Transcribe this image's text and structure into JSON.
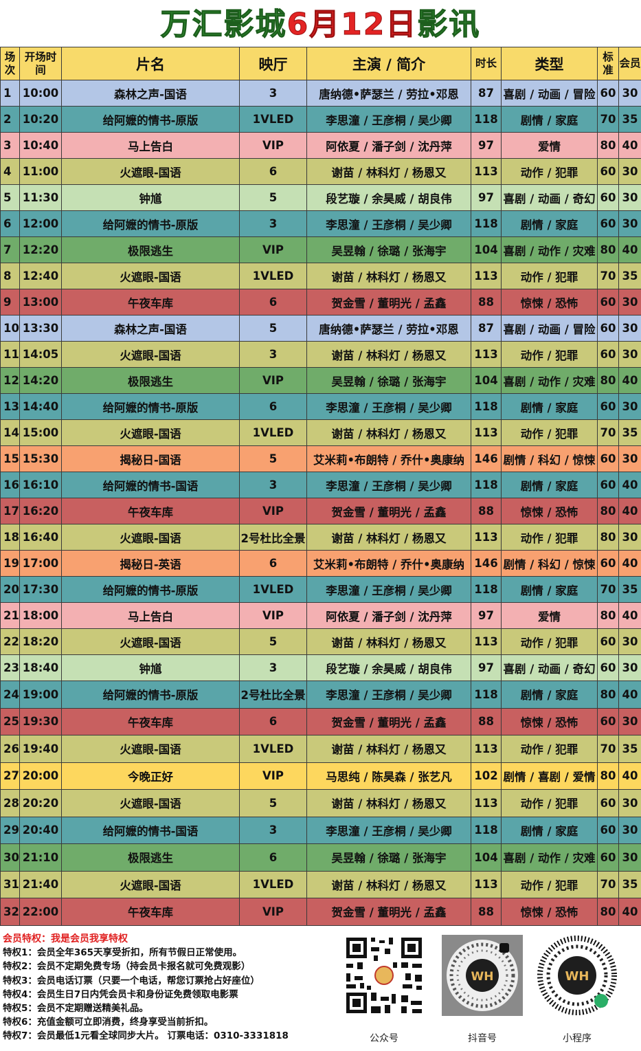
{
  "title": {
    "part1": "万汇影城",
    "part2": "6月12日",
    "part3": "影讯"
  },
  "headers": {
    "no": "场次",
    "time": "开场时间",
    "film": "片名",
    "hall": "映厅",
    "cast": "主演 / 简介",
    "duration": "时长",
    "genre": "类型",
    "std": "标准",
    "member": "会员"
  },
  "rows": [
    {
      "no": "1",
      "time": "10:00",
      "film": "森林之声-国语",
      "hall": "3",
      "cast": "唐纳德•萨瑟兰 / 劳拉•邓恩",
      "dur": "87",
      "genre": "喜剧 / 动画 / 冒险",
      "std": "60",
      "mem": "30",
      "color": "blue"
    },
    {
      "no": "2",
      "time": "10:20",
      "film": "给阿嬷的情书-原版",
      "hall": "1VLED",
      "cast": "李思潼 / 王彦桐 / 吴少卿",
      "dur": "118",
      "genre": "剧情 / 家庭",
      "std": "70",
      "mem": "35",
      "color": "teal"
    },
    {
      "no": "3",
      "time": "10:40",
      "film": "马上告白",
      "hall": "VIP",
      "cast": "阿依夏 / 潘子剑 / 沈丹萍",
      "dur": "97",
      "genre": "爱情",
      "std": "80",
      "mem": "40",
      "color": "pink"
    },
    {
      "no": "4",
      "time": "11:00",
      "film": "火遮眼-国语",
      "hall": "6",
      "cast": "谢苗 / 林科灯 / 杨恩又",
      "dur": "113",
      "genre": "动作 / 犯罪",
      "std": "60",
      "mem": "30",
      "color": "olive"
    },
    {
      "no": "5",
      "time": "11:30",
      "film": "钟馗",
      "hall": "5",
      "cast": "段艺璇 / 余昊威 / 胡良伟",
      "dur": "97",
      "genre": "喜剧 / 动画 / 奇幻",
      "std": "60",
      "mem": "30",
      "color": "light"
    },
    {
      "no": "6",
      "time": "12:00",
      "film": "给阿嬷的情书-原版",
      "hall": "3",
      "cast": "李思潼 / 王彦桐 / 吴少卿",
      "dur": "118",
      "genre": "剧情 / 家庭",
      "std": "60",
      "mem": "30",
      "color": "teal"
    },
    {
      "no": "7",
      "time": "12:20",
      "film": "极限逃生",
      "hall": "VIP",
      "cast": "吴昱翰 / 徐璐 / 张海宇",
      "dur": "104",
      "genre": "喜剧 / 动作 / 灾难",
      "std": "80",
      "mem": "40",
      "color": "green"
    },
    {
      "no": "8",
      "time": "12:40",
      "film": "火遮眼-国语",
      "hall": "1VLED",
      "cast": "谢苗 / 林科灯 / 杨恩又",
      "dur": "113",
      "genre": "动作 / 犯罪",
      "std": "70",
      "mem": "35",
      "color": "olive"
    },
    {
      "no": "9",
      "time": "13:00",
      "film": "午夜车库",
      "hall": "6",
      "cast": "贺金雪 / 董明光 / 孟鑫",
      "dur": "88",
      "genre": "惊悚 / 恐怖",
      "std": "60",
      "mem": "30",
      "color": "red"
    },
    {
      "no": "10",
      "time": "13:30",
      "film": "森林之声-国语",
      "hall": "5",
      "cast": "唐纳德•萨瑟兰 / 劳拉•邓恩",
      "dur": "87",
      "genre": "喜剧 / 动画 / 冒险",
      "std": "60",
      "mem": "30",
      "color": "blue"
    },
    {
      "no": "11",
      "time": "14:05",
      "film": "火遮眼-国语",
      "hall": "3",
      "cast": "谢苗 / 林科灯 / 杨恩又",
      "dur": "113",
      "genre": "动作 / 犯罪",
      "std": "60",
      "mem": "30",
      "color": "olive"
    },
    {
      "no": "12",
      "time": "14:20",
      "film": "极限逃生",
      "hall": "VIP",
      "cast": "吴昱翰 / 徐璐 / 张海宇",
      "dur": "104",
      "genre": "喜剧 / 动作 / 灾难",
      "std": "80",
      "mem": "40",
      "color": "green"
    },
    {
      "no": "13",
      "time": "14:40",
      "film": "给阿嬷的情书-原版",
      "hall": "6",
      "cast": "李思潼 / 王彦桐 / 吴少卿",
      "dur": "118",
      "genre": "剧情 / 家庭",
      "std": "60",
      "mem": "30",
      "color": "teal"
    },
    {
      "no": "14",
      "time": "15:00",
      "film": "火遮眼-国语",
      "hall": "1VLED",
      "cast": "谢苗 / 林科灯 / 杨恩又",
      "dur": "113",
      "genre": "动作 / 犯罪",
      "std": "70",
      "mem": "35",
      "color": "olive"
    },
    {
      "no": "15",
      "time": "15:30",
      "film": "揭秘日-国语",
      "hall": "5",
      "cast": "艾米莉•布朗特 / 乔什•奥康纳",
      "dur": "146",
      "genre": "剧情 / 科幻 / 惊悚",
      "std": "60",
      "mem": "30",
      "color": "orange"
    },
    {
      "no": "16",
      "time": "16:10",
      "film": "给阿嬷的情书-国语",
      "hall": "3",
      "cast": "李思潼 / 王彦桐 / 吴少卿",
      "dur": "118",
      "genre": "剧情 / 家庭",
      "std": "60",
      "mem": "40",
      "color": "teal"
    },
    {
      "no": "17",
      "time": "16:20",
      "film": "午夜车库",
      "hall": "VIP",
      "cast": "贺金雪 / 董明光 / 孟鑫",
      "dur": "88",
      "genre": "惊悚 / 恐怖",
      "std": "80",
      "mem": "40",
      "color": "red"
    },
    {
      "no": "18",
      "time": "16:40",
      "film": "火遮眼-国语",
      "hall": "2号杜比全景",
      "cast": "谢苗 / 林科灯 / 杨恩又",
      "dur": "113",
      "genre": "动作 / 犯罪",
      "std": "80",
      "mem": "30",
      "color": "olive"
    },
    {
      "no": "19",
      "time": "17:00",
      "film": "揭秘日-英语",
      "hall": "6",
      "cast": "艾米莉•布朗特 / 乔什•奥康纳",
      "dur": "146",
      "genre": "剧情 / 科幻 / 惊悚",
      "std": "60",
      "mem": "40",
      "color": "orange"
    },
    {
      "no": "20",
      "time": "17:30",
      "film": "给阿嬷的情书-原版",
      "hall": "1VLED",
      "cast": "李思潼 / 王彦桐 / 吴少卿",
      "dur": "118",
      "genre": "剧情 / 家庭",
      "std": "70",
      "mem": "35",
      "color": "teal"
    },
    {
      "no": "21",
      "time": "18:00",
      "film": "马上告白",
      "hall": "VIP",
      "cast": "阿依夏 / 潘子剑 / 沈丹萍",
      "dur": "97",
      "genre": "爱情",
      "std": "80",
      "mem": "40",
      "color": "pink"
    },
    {
      "no": "22",
      "time": "18:20",
      "film": "火遮眼-国语",
      "hall": "5",
      "cast": "谢苗 / 林科灯 / 杨恩又",
      "dur": "113",
      "genre": "动作 / 犯罪",
      "std": "60",
      "mem": "30",
      "color": "olive"
    },
    {
      "no": "23",
      "time": "18:40",
      "film": "钟馗",
      "hall": "3",
      "cast": "段艺璇 / 余昊威 / 胡良伟",
      "dur": "97",
      "genre": "喜剧 / 动画 / 奇幻",
      "std": "60",
      "mem": "30",
      "color": "light"
    },
    {
      "no": "24",
      "time": "19:00",
      "film": "给阿嬷的情书-原版",
      "hall": "2号杜比全景",
      "cast": "李思潼 / 王彦桐 / 吴少卿",
      "dur": "118",
      "genre": "剧情 / 家庭",
      "std": "80",
      "mem": "40",
      "color": "teal"
    },
    {
      "no": "25",
      "time": "19:30",
      "film": "午夜车库",
      "hall": "6",
      "cast": "贺金雪 / 董明光 / 孟鑫",
      "dur": "88",
      "genre": "惊悚 / 恐怖",
      "std": "60",
      "mem": "30",
      "color": "red"
    },
    {
      "no": "26",
      "time": "19:40",
      "film": "火遮眼-国语",
      "hall": "1VLED",
      "cast": "谢苗 / 林科灯 / 杨恩又",
      "dur": "113",
      "genre": "动作 / 犯罪",
      "std": "70",
      "mem": "35",
      "color": "olive"
    },
    {
      "no": "27",
      "time": "20:00",
      "film": "今晚正好",
      "hall": "VIP",
      "cast": "马思纯 / 陈昊森 / 张艺凡",
      "dur": "102",
      "genre": "剧情 / 喜剧 / 爱情",
      "std": "80",
      "mem": "40",
      "color": "yellow"
    },
    {
      "no": "28",
      "time": "20:20",
      "film": "火遮眼-国语",
      "hall": "5",
      "cast": "谢苗 / 林科灯 / 杨恩又",
      "dur": "113",
      "genre": "动作 / 犯罪",
      "std": "60",
      "mem": "30",
      "color": "olive"
    },
    {
      "no": "29",
      "time": "20:40",
      "film": "给阿嬷的情书-国语",
      "hall": "3",
      "cast": "李思潼 / 王彦桐 / 吴少卿",
      "dur": "118",
      "genre": "剧情 / 家庭",
      "std": "60",
      "mem": "30",
      "color": "teal"
    },
    {
      "no": "30",
      "time": "21:10",
      "film": "极限逃生",
      "hall": "6",
      "cast": "吴昱翰 / 徐璐 / 张海宇",
      "dur": "104",
      "genre": "喜剧 / 动作 / 灾难",
      "std": "60",
      "mem": "30",
      "color": "green"
    },
    {
      "no": "31",
      "time": "21:40",
      "film": "火遮眼-国语",
      "hall": "1VLED",
      "cast": "谢苗 / 林科灯 / 杨恩又",
      "dur": "113",
      "genre": "动作 / 犯罪",
      "std": "70",
      "mem": "35",
      "color": "olive"
    },
    {
      "no": "32",
      "time": "22:00",
      "film": "午夜车库",
      "hall": "VIP",
      "cast": "贺金雪 / 董明光 / 孟鑫",
      "dur": "88",
      "genre": "惊悚 / 恐怖",
      "std": "80",
      "mem": "40",
      "color": "red"
    }
  ],
  "colors": {
    "blue": "#b3c6e6",
    "teal": "#5aa5a9",
    "pink": "#f3b0b2",
    "olive": "#c9c97a",
    "light": "#c5e0b4",
    "green": "#70ac6a",
    "red": "#c86060",
    "orange": "#f8a170",
    "yellow": "#fdd75e",
    "header": "#f8da6a",
    "title_green": "#2f8a2f",
    "title_red": "#e32424",
    "perk_heading": "#e02020"
  },
  "perks": {
    "heading": "会员特权：我是会员我享特权",
    "items": [
      "特权1：会员全年365天享受折扣，所有节假日正常使用。",
      "特权2：会员不定期免费专场（持会员卡报名就可免费观影）",
      "特权3：会员电话订票（只要一个电话，帮您订票抢占好座位）",
      "特权4：会员生日7日内凭会员卡和身份证免费领取电影票",
      "特权5：会员不定期赠送精美礼品。",
      "特权6：充值金额可立即消费，终身享受当前折扣。",
      "特权7：会员最低1元看全球同步大片。 订票电话：0310-3331818"
    ]
  },
  "qr_codes": {
    "official": {
      "label": "公众号",
      "icon": "qr-code-icon"
    },
    "douyin": {
      "label": "抖音号",
      "icon": "douyin-code-icon"
    },
    "mini": {
      "label": "小程序",
      "icon": "mini-program-code-icon"
    }
  }
}
